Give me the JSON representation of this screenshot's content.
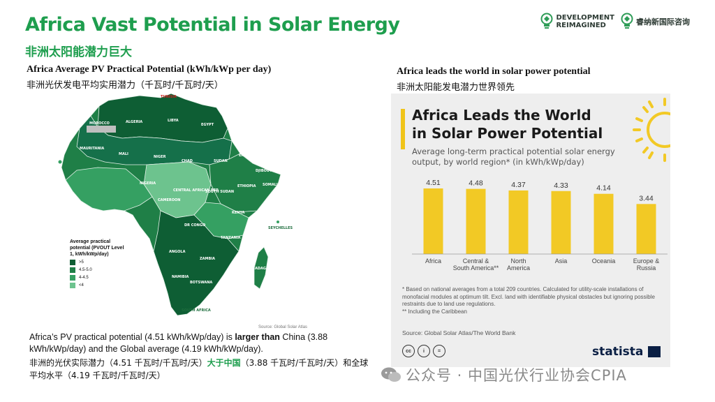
{
  "header": {
    "title_en": "Africa Vast Potential in Solar Energy",
    "title_zh": "非洲太阳能潜力巨大",
    "logo_dev_line1": "DEVELOPMENT",
    "logo_dev_line2": "REIMAGINED",
    "logo_cn": "睿纳新国际咨询"
  },
  "left": {
    "title_en": "Africa Average PV Practical Potential (kWh/kWp per day)",
    "title_zh": "非洲光伏发电平均实用潜力（千瓦时/千瓦时/天）",
    "map_labels": [
      "TUNISIA",
      "MOROCCO",
      "ALGERIA",
      "LIBYA",
      "EGYPT",
      "MAURITANIA",
      "MALI",
      "NIGER",
      "CHAD",
      "SUDAN",
      "ERITREA",
      "DJIBOUTI",
      "ETHIOPIA",
      "SOMALIA",
      "NIGERIA",
      "CENTRAL AFRICAN REP.",
      "SOUTH SUDAN",
      "CAMEROON",
      "KENYA",
      "DR CONGO",
      "TANZANIA",
      "ANGOLA",
      "ZAMBIA",
      "NAMIBIA",
      "BOTSWANA",
      "MADAGASCAR",
      "SOUTH AFRICA",
      "SEYCHELLES"
    ],
    "legend": {
      "title": "Average practical potential (PVOUT Level 1, kWh/kWp/day)",
      "items": [
        {
          "label": ">5",
          "color": "#0e5e34"
        },
        {
          "label": "4.5-5.0",
          "color": "#1f7f47"
        },
        {
          "label": "4-4.5",
          "color": "#35a062"
        },
        {
          "label": "<4",
          "color": "#6dc38e"
        }
      ]
    },
    "map_source": "Source: Global Solar Atlas",
    "caption_part1": "Africa’s PV practical potential (4.51 kWh/kWp/day) is ",
    "caption_bold": "larger than",
    "caption_part2": " China (3.88 kWh/kWp/day) and the Global average (4.19 kWh/kWp/day).",
    "caption_zh_part1": "非洲的光伏实际潜力（4.51 千瓦时/千瓦时/天）",
    "caption_zh_highlight": "大于中国",
    "caption_zh_part2": "（3.88 千瓦时/千瓦时/天）和全球平均水平（4.19 千瓦时/千瓦时/天）"
  },
  "right": {
    "title_en": "Africa leads the world in solar power potential",
    "title_zh": "非洲太阳能发电潜力世界领先",
    "panel_title_line1": "Africa Leads the World",
    "panel_title_line2": "in Solar Power Potential",
    "panel_subtitle": "Average long-term practical potential solar energy output, by world region* (in kWh/kWp/day)",
    "footnote1": "* Based on national averages from a total 209 countries. Calculated for utility-scale installations of monofacial modules at optimum tilt. Excl. land with identifiable physical obstacles but ignoring possible restraints due to land use regulations.",
    "footnote2": "** Including the Caribbean",
    "source": "Source: Global Solar Atlas/The World Bank",
    "brand": "statista"
  },
  "chart_data": {
    "type": "bar",
    "title": "Africa Leads the World in Solar Power Potential",
    "subtitle": "Average long-term practical potential solar energy output, by world region* (in kWh/kWp/day)",
    "categories": [
      "Africa",
      "Central & South America**",
      "North America",
      "Asia",
      "Oceania",
      "Europe & Russia"
    ],
    "category_lines": [
      [
        "Africa"
      ],
      [
        "Central &",
        "South America**"
      ],
      [
        "North",
        "America"
      ],
      [
        "Asia"
      ],
      [
        "Oceania"
      ],
      [
        "Europe &",
        "Russia"
      ]
    ],
    "values": [
      4.51,
      4.48,
      4.37,
      4.33,
      4.14,
      3.44
    ],
    "value_labels": [
      "4.51",
      "4.48",
      "4.37",
      "4.33",
      "4.14",
      "3.44"
    ],
    "ylim": [
      0,
      4.51
    ],
    "bar_color": "#f2c925",
    "xlabel": "",
    "ylabel": ""
  },
  "watermark": {
    "text": "公众号 · 中国光伏行业协会CPIA"
  }
}
